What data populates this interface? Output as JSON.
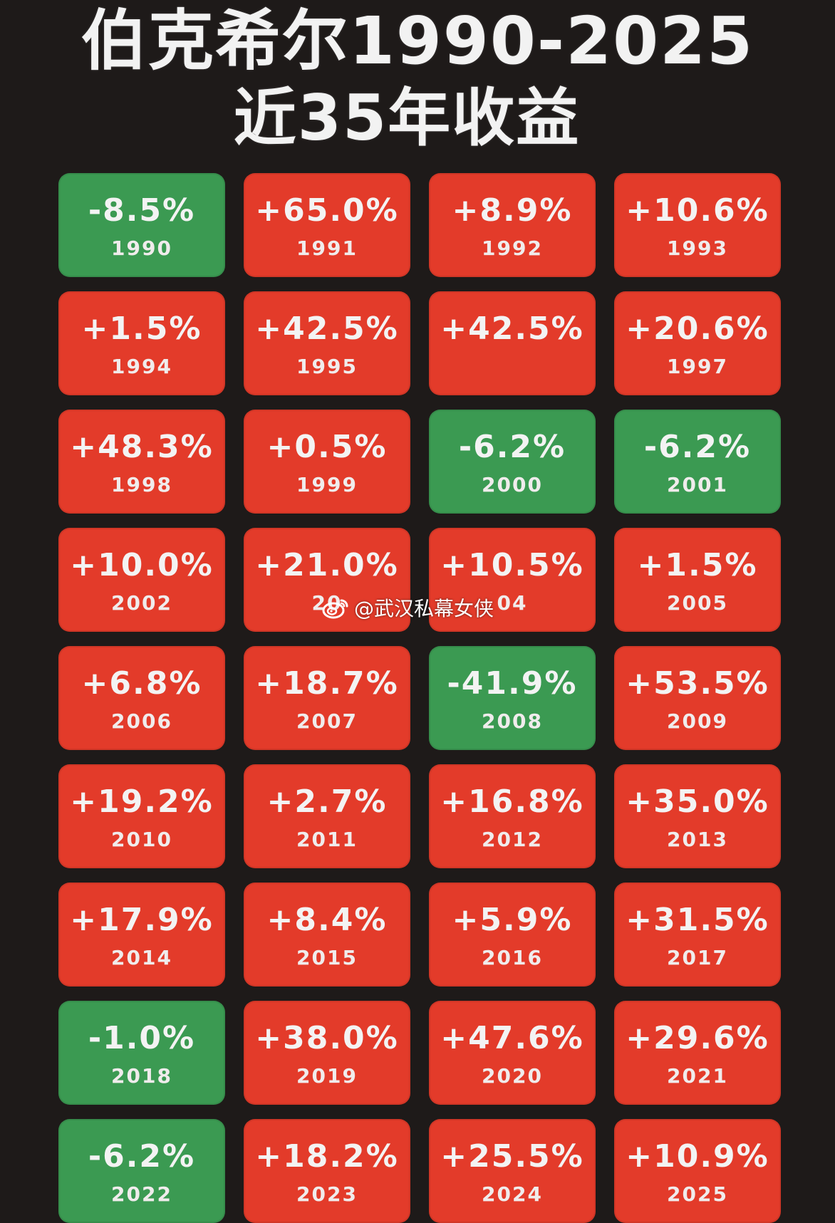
{
  "title": {
    "line1": "伯克希尔1990-2025",
    "line2": "近35年收益"
  },
  "colors": {
    "background": "#1e1a19",
    "positive": "#e33b2a",
    "negative": "#3b9a52",
    "text": "#f3f3f3"
  },
  "watermark": {
    "icon": "weibo-icon",
    "text": "@武汉私幕女侠"
  },
  "tiles": [
    {
      "ret": "-8.5%",
      "year": "1990",
      "sign": "neg"
    },
    {
      "ret": "+65.0%",
      "year": "1991",
      "sign": "pos"
    },
    {
      "ret": "+8.9%",
      "year": "1992",
      "sign": "pos"
    },
    {
      "ret": "+10.6%",
      "year": "1993",
      "sign": "pos"
    },
    {
      "ret": "+1.5%",
      "year": "1994",
      "sign": "pos"
    },
    {
      "ret": "+42.5%",
      "year": "1995",
      "sign": "pos"
    },
    {
      "ret": "+42.5%",
      "year": "",
      "sign": "pos"
    },
    {
      "ret": "+20.6%",
      "year": "1997",
      "sign": "pos"
    },
    {
      "ret": "+48.3%",
      "year": "1998",
      "sign": "pos"
    },
    {
      "ret": "+0.5%",
      "year": "1999",
      "sign": "pos"
    },
    {
      "ret": "-6.2%",
      "year": "2000",
      "sign": "neg"
    },
    {
      "ret": "-6.2%",
      "year": "2001",
      "sign": "neg"
    },
    {
      "ret": "+10.0%",
      "year": "2002",
      "sign": "pos"
    },
    {
      "ret": "+21.0%",
      "year": "20",
      "sign": "pos"
    },
    {
      "ret": "+10.5%",
      "year": "04",
      "sign": "pos"
    },
    {
      "ret": "+1.5%",
      "year": "2005",
      "sign": "pos"
    },
    {
      "ret": "+6.8%",
      "year": "2006",
      "sign": "pos"
    },
    {
      "ret": "+18.7%",
      "year": "2007",
      "sign": "pos"
    },
    {
      "ret": "-41.9%",
      "year": "2008",
      "sign": "neg"
    },
    {
      "ret": "+53.5%",
      "year": "2009",
      "sign": "pos"
    },
    {
      "ret": "+19.2%",
      "year": "2010",
      "sign": "pos"
    },
    {
      "ret": "+2.7%",
      "year": "2011",
      "sign": "pos"
    },
    {
      "ret": "+16.8%",
      "year": "2012",
      "sign": "pos"
    },
    {
      "ret": "+35.0%",
      "year": "2013",
      "sign": "pos"
    },
    {
      "ret": "+17.9%",
      "year": "2014",
      "sign": "pos"
    },
    {
      "ret": "+8.4%",
      "year": "2015",
      "sign": "pos"
    },
    {
      "ret": "+5.9%",
      "year": "2016",
      "sign": "pos"
    },
    {
      "ret": "+31.5%",
      "year": "2017",
      "sign": "pos"
    },
    {
      "ret": "-1.0%",
      "year": "2018",
      "sign": "neg"
    },
    {
      "ret": "+38.0%",
      "year": "2019",
      "sign": "pos"
    },
    {
      "ret": "+47.6%",
      "year": "2020",
      "sign": "pos"
    },
    {
      "ret": "+29.6%",
      "year": "2021",
      "sign": "pos"
    },
    {
      "ret": "-6.2%",
      "year": "2022",
      "sign": "neg"
    },
    {
      "ret": "+18.2%",
      "year": "2023",
      "sign": "pos"
    },
    {
      "ret": "+25.5%",
      "year": "2024",
      "sign": "pos"
    },
    {
      "ret": "+10.9%",
      "year": "2025",
      "sign": "pos"
    }
  ]
}
